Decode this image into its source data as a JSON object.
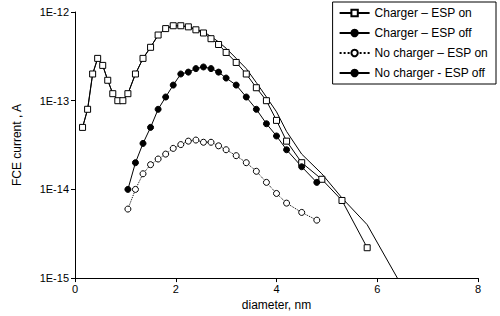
{
  "chart_data": {
    "type": "line",
    "x_label": "diameter, nm",
    "y_label": "FCE current , A",
    "log": "y",
    "grid": false,
    "legend": "top-right",
    "xlim": [
      0,
      8
    ],
    "xticks": [
      0,
      2,
      4,
      6,
      8
    ],
    "ylim": [
      1e-15,
      1e-12
    ],
    "yticks": [
      {
        "value": 1e-15,
        "label": "1E-15"
      },
      {
        "value": 1e-14,
        "label": "1E-14"
      },
      {
        "value": 1e-13,
        "label": "1E-13"
      },
      {
        "value": 1e-12,
        "label": "1E-12"
      }
    ],
    "series": [
      {
        "name": "Charger – ESP on",
        "color": "#000000",
        "marker": "open-square",
        "line_style": "solid",
        "x": [
          0.15,
          0.25,
          0.35,
          0.45,
          0.55,
          0.65,
          0.75,
          0.85,
          0.95,
          1.05,
          1.2,
          1.35,
          1.5,
          1.65,
          1.8,
          1.95,
          2.1,
          2.25,
          2.4,
          2.55,
          2.7,
          2.85,
          3.0,
          3.2,
          3.4,
          3.6,
          3.8,
          4.0,
          4.2,
          4.5,
          4.9,
          5.3,
          5.8
        ],
        "values": [
          5e-14,
          8e-14,
          2e-13,
          3e-13,
          2.5e-13,
          1.7e-13,
          1.2e-13,
          1e-13,
          1e-13,
          1.2e-13,
          2e-13,
          3e-13,
          4e-13,
          5.5e-13,
          6.5e-13,
          7e-13,
          7e-13,
          6.8e-13,
          6.3e-13,
          5.8e-13,
          5e-13,
          4.3e-13,
          3.5e-13,
          2.7e-13,
          2e-13,
          1.4e-13,
          1e-13,
          6e-14,
          3.5e-14,
          2e-14,
          1.3e-14,
          7.5e-15,
          2.2e-15
        ]
      },
      {
        "name": "Charger – ESP off",
        "color": "#000000",
        "marker": "none",
        "line_style": "solid",
        "x": [
          0.15,
          0.25,
          0.35,
          0.45,
          0.55,
          0.65,
          0.75,
          0.85,
          0.95,
          1.05,
          1.2,
          1.35,
          1.5,
          1.65,
          1.8,
          1.95,
          2.1,
          2.25,
          2.4,
          2.55,
          2.7,
          2.85,
          3.0,
          3.2,
          3.4,
          3.6,
          3.8,
          4.0,
          4.2,
          4.5,
          4.9,
          5.3,
          5.8,
          6.4
        ],
        "values": [
          5e-14,
          8e-14,
          2e-13,
          3e-13,
          2.5e-13,
          1.7e-13,
          1.2e-13,
          1e-13,
          1e-13,
          1.2e-13,
          2e-13,
          3e-13,
          4e-13,
          5.5e-13,
          6.5e-13,
          7e-13,
          7e-13,
          6.8e-13,
          6.4e-13,
          6e-13,
          5.3e-13,
          4.6e-13,
          3.9e-13,
          3e-13,
          2.3e-13,
          1.6e-13,
          1.1e-13,
          7.5e-14,
          4.5e-14,
          2.5e-14,
          1.5e-14,
          8e-15,
          4e-15,
          1e-15
        ]
      },
      {
        "name": "No charger – ESP on",
        "color": "#000000",
        "marker": "open-circle",
        "line_style": "dotted",
        "x": [
          1.05,
          1.2,
          1.35,
          1.5,
          1.65,
          1.8,
          1.95,
          2.1,
          2.25,
          2.4,
          2.55,
          2.7,
          2.85,
          3.0,
          3.2,
          3.4,
          3.6,
          3.8,
          4.0,
          4.2,
          4.5,
          4.8
        ],
        "values": [
          6e-15,
          1e-14,
          1.5e-14,
          1.9e-14,
          2.2e-14,
          2.5e-14,
          2.9e-14,
          3.2e-14,
          3.5e-14,
          3.6e-14,
          3.4e-14,
          3.4e-14,
          3.1e-14,
          2.8e-14,
          2.4e-14,
          2e-14,
          1.6e-14,
          1.2e-14,
          9e-15,
          7e-15,
          5.5e-15,
          4.5e-15
        ]
      },
      {
        "name": "No charger - ESP off",
        "color": "#000000",
        "marker": "filled-circle",
        "line_style": "solid",
        "x": [
          1.05,
          1.2,
          1.35,
          1.5,
          1.65,
          1.8,
          1.95,
          2.1,
          2.25,
          2.4,
          2.55,
          2.7,
          2.85,
          3.0,
          3.2,
          3.4,
          3.6,
          3.8,
          4.0,
          4.2,
          4.5,
          4.8
        ],
        "values": [
          1e-14,
          2e-14,
          3.3e-14,
          5e-14,
          8e-14,
          1.1e-13,
          1.5e-13,
          2e-13,
          2.1e-13,
          2.3e-13,
          2.4e-13,
          2.3e-13,
          2.1e-13,
          1.8e-13,
          1.5e-13,
          1.1e-13,
          8e-14,
          5.5e-14,
          4e-14,
          2.8e-14,
          1.8e-14,
          1.2e-14
        ]
      }
    ]
  }
}
